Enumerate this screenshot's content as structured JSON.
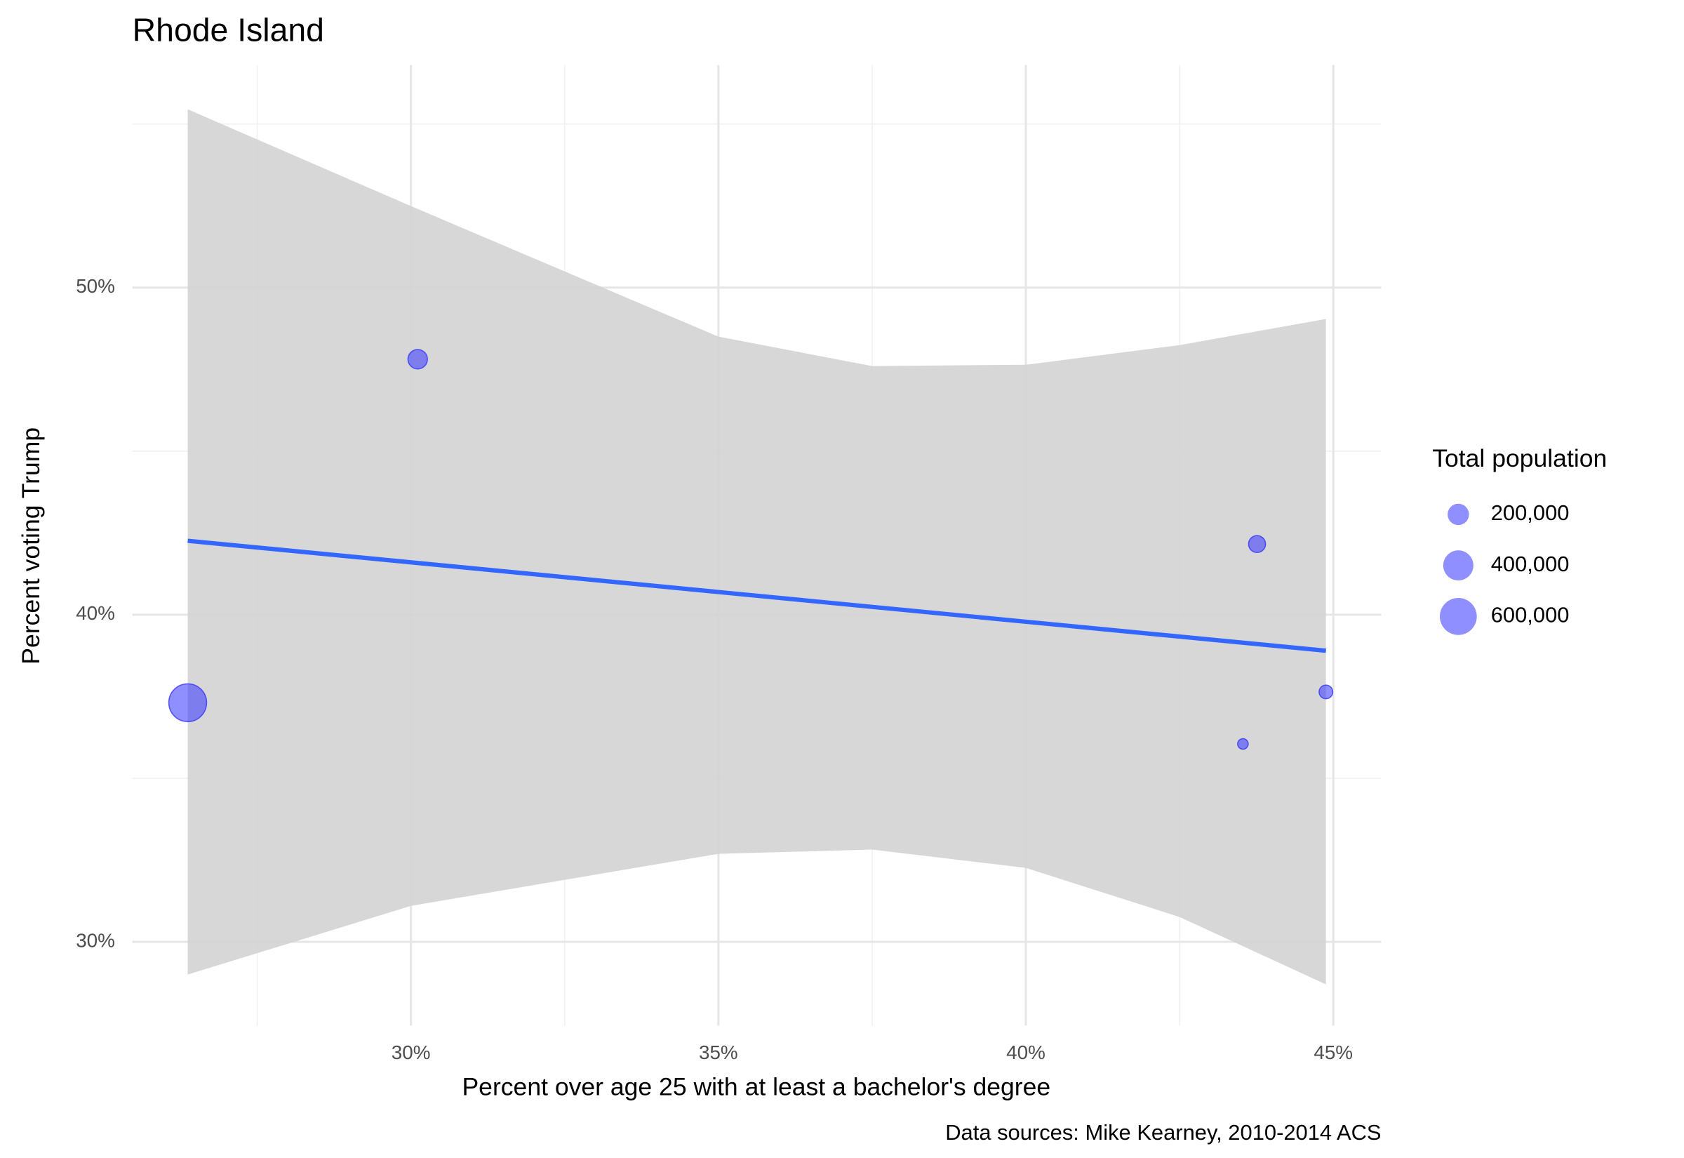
{
  "chart_data": {
    "type": "scatter",
    "title": "Rhode Island",
    "x_label": "Percent over age 25 with at least a bachelor's degree",
    "y_label": "Percent voting Trump",
    "caption": "Data sources: Mike Kearney, 2010-2014 ACS",
    "xlim": [
      25.47,
      45.78
    ],
    "ylim": [
      27.44,
      56.8
    ],
    "xticks": [
      {
        "value": 30,
        "label": "30%"
      },
      {
        "value": 35,
        "label": "35%"
      },
      {
        "value": 40,
        "label": "40%"
      },
      {
        "value": 45,
        "label": "45%"
      }
    ],
    "yticks": [
      {
        "value": 30,
        "label": "30%"
      },
      {
        "value": 40,
        "label": "40%"
      },
      {
        "value": 50,
        "label": "50%"
      }
    ],
    "xminor": [
      27.5,
      32.5,
      37.5,
      42.5
    ],
    "yminor": [
      35,
      45,
      55
    ],
    "grid": true,
    "points": {
      "color": "#3333ff",
      "opacity": 0.55,
      "x": [
        26.37,
        30.11,
        43.76,
        44.88,
        43.53
      ],
      "y": [
        37.31,
        47.81,
        42.16,
        37.64,
        36.05
      ],
      "size": [
        626667,
        166000,
        126000,
        82000,
        49000
      ]
    },
    "fit": {
      "color": "#3366ff",
      "x": [
        26.37,
        44.88
      ],
      "y": [
        42.26,
        38.9
      ]
    },
    "band": {
      "color": "#d3d3d3",
      "x": [
        26.37,
        30,
        35,
        37.5,
        40,
        42.5,
        44.88
      ],
      "upper": [
        55.45,
        52.49,
        48.5,
        47.6,
        47.64,
        48.24,
        49.04
      ],
      "lower": [
        29.0,
        31.1,
        32.69,
        32.82,
        32.26,
        30.76,
        28.7
      ]
    },
    "size_legend": {
      "title": "Total population",
      "values": [
        {
          "value": 200000,
          "label": "200,000"
        },
        {
          "value": 400000,
          "label": "400,000"
        },
        {
          "value": 600000,
          "label": "600,000"
        }
      ]
    }
  }
}
